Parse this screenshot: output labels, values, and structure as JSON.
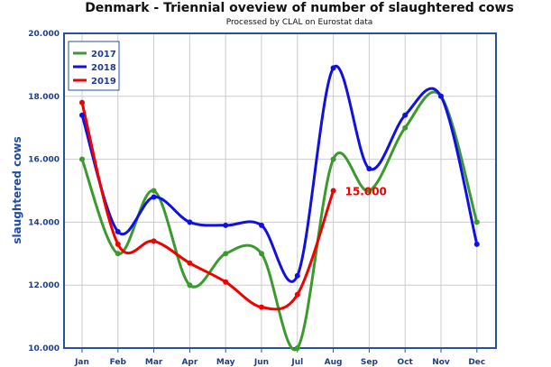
{
  "chart_data": {
    "type": "line",
    "title": "Denmark - Triennial oveview of number of slaughtered cows",
    "subtitle": "Processed by CLAL on Eurostat data",
    "xlabel": "",
    "ylabel": "slaughtered cows",
    "categories": [
      "Jan",
      "Feb",
      "Mar",
      "Apr",
      "May",
      "Jun",
      "Jul",
      "Aug",
      "Sep",
      "Oct",
      "Nov",
      "Dec"
    ],
    "ylim": [
      10000,
      20000
    ],
    "yticks": [
      {
        "value": 10000,
        "label": "10.000"
      },
      {
        "value": 12000,
        "label": "12.000"
      },
      {
        "value": 14000,
        "label": "14.000"
      },
      {
        "value": 16000,
        "label": "16.000"
      },
      {
        "value": 18000,
        "label": "18.000"
      },
      {
        "value": 20000,
        "label": "20.000"
      }
    ],
    "grid": true,
    "legend_position": "top-left",
    "series": [
      {
        "name": "2017",
        "color": "#3a9a2e",
        "values": [
          16000,
          13000,
          15000,
          12000,
          13000,
          13000,
          10000,
          16000,
          15000,
          17000,
          18000,
          14000
        ]
      },
      {
        "name": "2018",
        "color": "#1010e0",
        "values": [
          17400,
          13700,
          14800,
          14000,
          13900,
          13900,
          12300,
          18900,
          15700,
          17400,
          18000,
          13300
        ]
      },
      {
        "name": "2019",
        "color": "#f00000",
        "values": [
          17800,
          13300,
          13400,
          12700,
          12100,
          11300,
          11700,
          15000,
          null,
          null,
          null,
          null
        ]
      }
    ],
    "annotations": [
      {
        "series": "2019",
        "category": "Aug",
        "text": "15.000",
        "color": "#f00000"
      }
    ],
    "frame_color": "#2a4fa0",
    "grid_color": "#cccccc"
  }
}
